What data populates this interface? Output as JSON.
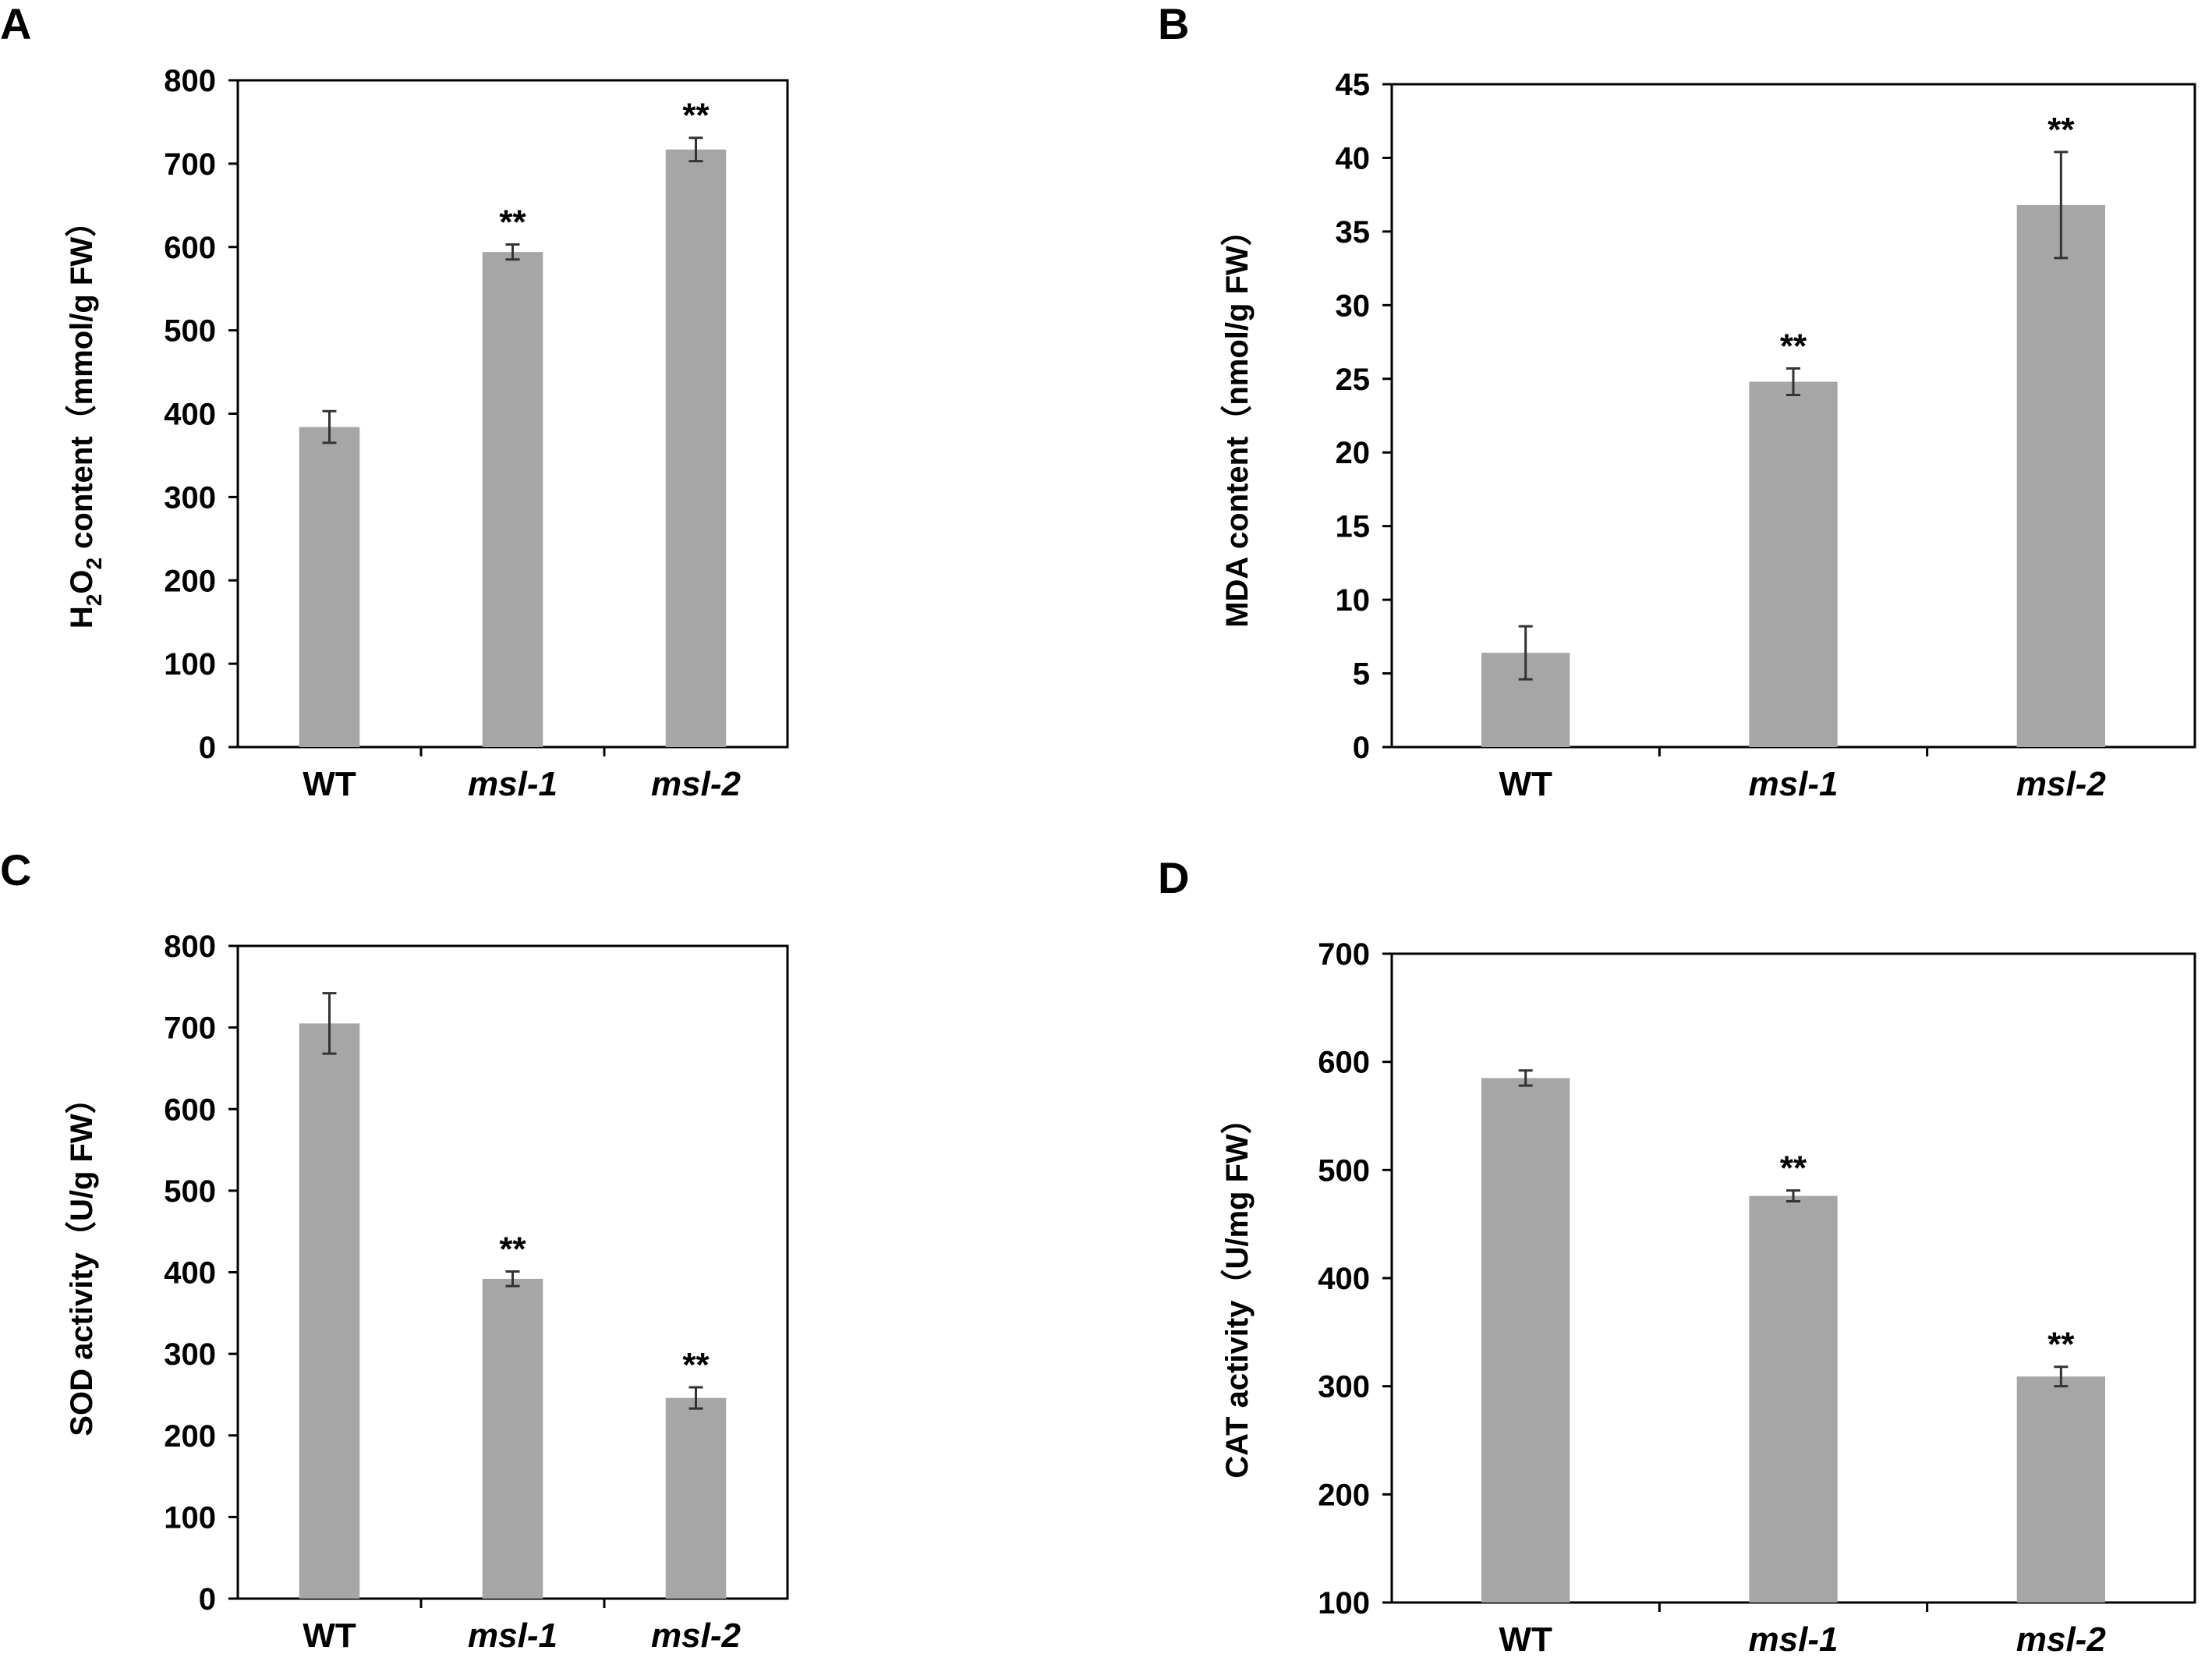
{
  "figure": {
    "panels": [
      "A",
      "B",
      "C",
      "D"
    ],
    "colors": {
      "bar": "#a6a6a6",
      "axis": "#000000",
      "error_bar": "#333333"
    }
  },
  "chart_data": [
    {
      "id": "A",
      "type": "bar",
      "label": "A",
      "categories": [
        "WT",
        "msl-1",
        "msl-2"
      ],
      "italic_categories": [
        false,
        true,
        true
      ],
      "values": [
        384,
        594,
        717
      ],
      "errors": [
        19,
        9,
        14
      ],
      "significance": [
        "",
        "**",
        "**"
      ],
      "ylabel": "H2O2 content (mmol/g FW)",
      "ylabel_parts": {
        "base": "H",
        "sub1": "2",
        "mid": "O",
        "sub2": "2",
        "rest": " content（mmol/g FW）"
      },
      "xlabel": "",
      "ylim": [
        0,
        800
      ],
      "yticks": [
        0,
        100,
        200,
        300,
        400,
        500,
        600,
        700,
        800
      ],
      "grid": false
    },
    {
      "id": "B",
      "type": "bar",
      "label": "B",
      "categories": [
        "WT",
        "msl-1",
        "msl-2"
      ],
      "italic_categories": [
        false,
        true,
        true
      ],
      "values": [
        6.4,
        24.8,
        36.8
      ],
      "errors": [
        1.8,
        0.9,
        3.6
      ],
      "significance": [
        "",
        "**",
        "**"
      ],
      "ylabel": "MDA content（nmol/g FW）",
      "xlabel": "",
      "ylim": [
        0,
        45
      ],
      "yticks": [
        0,
        5,
        10,
        15,
        20,
        25,
        30,
        35,
        40,
        45
      ],
      "grid": false
    },
    {
      "id": "C",
      "type": "bar",
      "label": "C",
      "categories": [
        "WT",
        "msl-1",
        "msl-2"
      ],
      "italic_categories": [
        false,
        true,
        true
      ],
      "values": [
        705,
        392,
        246
      ],
      "errors": [
        37,
        9,
        13
      ],
      "significance": [
        "",
        "**",
        "**"
      ],
      "ylabel": "SOD activity（U/g FW）",
      "xlabel": "",
      "ylim": [
        0,
        800
      ],
      "yticks": [
        0,
        100,
        200,
        300,
        400,
        500,
        600,
        700,
        800
      ],
      "grid": false
    },
    {
      "id": "D",
      "type": "bar",
      "label": "D",
      "categories": [
        "WT",
        "msl-1",
        "msl-2"
      ],
      "italic_categories": [
        false,
        true,
        true
      ],
      "values": [
        585,
        476,
        309
      ],
      "errors": [
        7,
        5,
        9
      ],
      "significance": [
        "",
        "**",
        "**"
      ],
      "ylabel": "CAT activity（U/mg FW）",
      "xlabel": "",
      "ylim": [
        100,
        700
      ],
      "yticks": [
        100,
        200,
        300,
        400,
        500,
        600,
        700
      ],
      "grid": false
    }
  ]
}
